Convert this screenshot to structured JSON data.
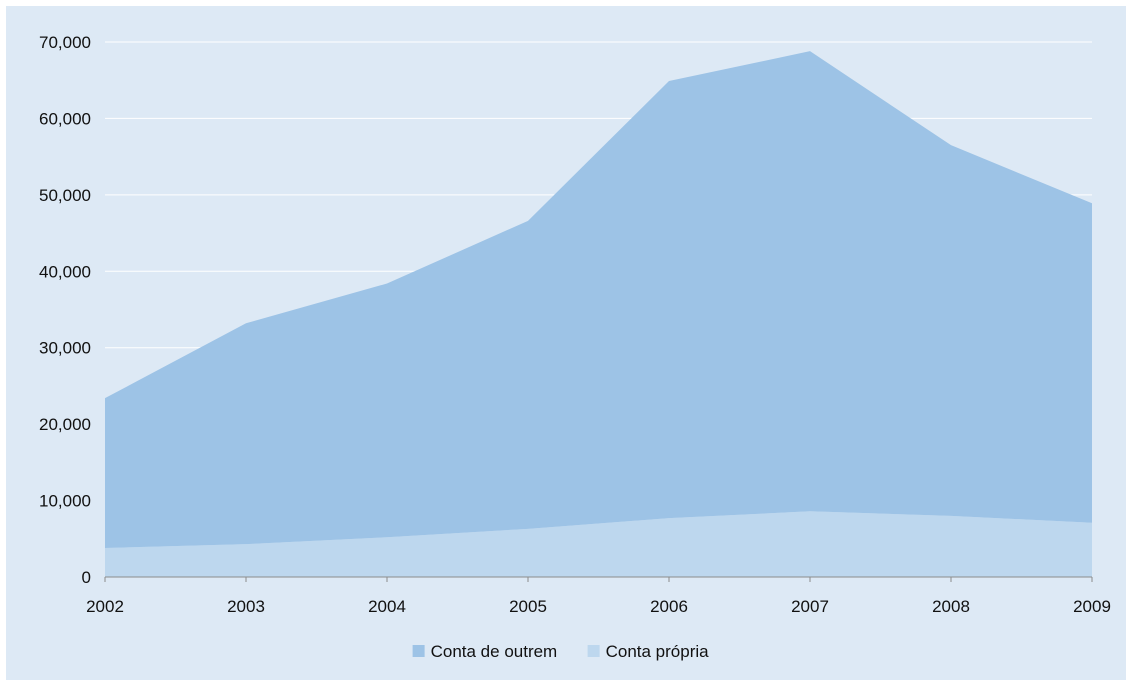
{
  "chart_data": {
    "type": "area",
    "stacked": true,
    "title": "",
    "xlabel": "",
    "ylabel": "",
    "x": [
      "2002",
      "2003",
      "2004",
      "2005",
      "2006",
      "2007",
      "2008",
      "2009"
    ],
    "ylim": [
      0,
      70000
    ],
    "yticks": [
      0,
      10000,
      20000,
      30000,
      40000,
      50000,
      60000,
      70000
    ],
    "ytick_labels": [
      "0",
      "10,000",
      "20,000",
      "30,000",
      "40,000",
      "50,000",
      "60,000",
      "70,000"
    ],
    "grid": "horizontal",
    "legend_position": "bottom",
    "series": [
      {
        "name": "Conta própria",
        "values": [
          3800,
          4300,
          5200,
          6300,
          7700,
          8600,
          8000,
          7100
        ],
        "color": "#bdd7ee"
      },
      {
        "name": "Conta de outrem",
        "values": [
          19600,
          28900,
          33200,
          40300,
          57200,
          60200,
          48500,
          41800
        ],
        "color": "#9dc3e6"
      }
    ],
    "legend_order": [
      "Conta de outrem",
      "Conta própria"
    ]
  },
  "colors": {
    "background": "#dde9f5",
    "grid": "#ffffff",
    "axis": "#8c8c8c"
  }
}
